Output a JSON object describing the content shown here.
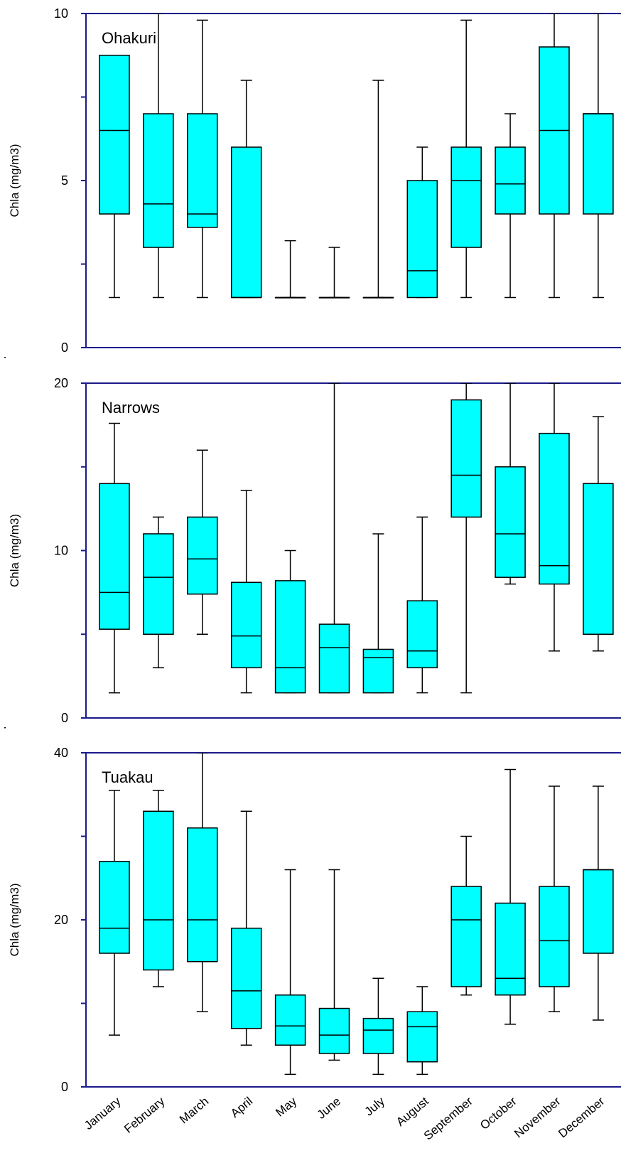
{
  "colors": {
    "box_fill": "#00FFFF",
    "frame": "#1a1a8c",
    "whisker": "#000000"
  },
  "chart_data": [
    {
      "type": "box",
      "title": "Ohakuri",
      "ylabel": "Chla (mg/m3)",
      "ylim": [
        0,
        10
      ],
      "yticks": [
        0,
        5,
        10
      ],
      "categories": [
        "January",
        "February",
        "March",
        "April",
        "May",
        "June",
        "July",
        "August",
        "September",
        "October",
        "November",
        "December"
      ],
      "boxes": [
        {
          "min": 1.5,
          "q1": 4.0,
          "median": 6.5,
          "q3": 8.75,
          "max": 8.75
        },
        {
          "min": 1.5,
          "q1": 3.0,
          "median": 4.3,
          "q3": 7.0,
          "max": 10.0
        },
        {
          "min": 1.5,
          "q1": 3.6,
          "median": 4.0,
          "q3": 7.0,
          "max": 9.8
        },
        {
          "min": 1.5,
          "q1": 1.5,
          "median": 1.5,
          "q3": 6.0,
          "max": 8.0
        },
        {
          "min": 1.5,
          "q1": 1.5,
          "median": 1.5,
          "q3": 1.5,
          "max": 3.2
        },
        {
          "min": 1.5,
          "q1": 1.5,
          "median": 1.5,
          "q3": 1.5,
          "max": 3.0
        },
        {
          "min": 1.5,
          "q1": 1.5,
          "median": 1.5,
          "q3": 1.5,
          "max": 8.0
        },
        {
          "min": 1.5,
          "q1": 1.5,
          "median": 2.3,
          "q3": 5.0,
          "max": 6.0
        },
        {
          "min": 1.5,
          "q1": 3.0,
          "median": 5.0,
          "q3": 6.0,
          "max": 9.8
        },
        {
          "min": 1.5,
          "q1": 4.0,
          "median": 4.9,
          "q3": 6.0,
          "max": 7.0
        },
        {
          "min": 1.5,
          "q1": 4.0,
          "median": 6.5,
          "q3": 9.0,
          "max": 10.0
        },
        {
          "min": 1.5,
          "q1": 4.0,
          "median": 7.0,
          "q3": 7.0,
          "max": 10.0
        }
      ]
    },
    {
      "type": "box",
      "title": "Narrows",
      "ylabel": "Chla (mg/m3)",
      "ylim": [
        0,
        20
      ],
      "yticks": [
        0,
        10,
        20
      ],
      "categories": [
        "January",
        "February",
        "March",
        "April",
        "May",
        "June",
        "July",
        "August",
        "September",
        "October",
        "November",
        "December"
      ],
      "boxes": [
        {
          "min": 1.5,
          "q1": 5.3,
          "median": 7.5,
          "q3": 14.0,
          "max": 17.6
        },
        {
          "min": 3.0,
          "q1": 5.0,
          "median": 8.4,
          "q3": 11.0,
          "max": 12.0
        },
        {
          "min": 5.0,
          "q1": 7.4,
          "median": 9.5,
          "q3": 12.0,
          "max": 16.0
        },
        {
          "min": 1.5,
          "q1": 3.0,
          "median": 4.9,
          "q3": 8.1,
          "max": 13.6
        },
        {
          "min": 1.5,
          "q1": 1.5,
          "median": 3.0,
          "q3": 8.2,
          "max": 10.0
        },
        {
          "min": 1.5,
          "q1": 1.5,
          "median": 4.2,
          "q3": 5.6,
          "max": 20.0
        },
        {
          "min": 1.5,
          "q1": 1.5,
          "median": 3.6,
          "q3": 4.1,
          "max": 11.0
        },
        {
          "min": 1.5,
          "q1": 3.0,
          "median": 4.0,
          "q3": 7.0,
          "max": 12.0
        },
        {
          "min": 1.5,
          "q1": 12.0,
          "median": 14.5,
          "q3": 19.0,
          "max": 20.0
        },
        {
          "min": 8.0,
          "q1": 8.4,
          "median": 11.0,
          "q3": 15.0,
          "max": 20.0
        },
        {
          "min": 4.0,
          "q1": 8.0,
          "median": 9.1,
          "q3": 17.0,
          "max": 20.0
        },
        {
          "min": 4.0,
          "q1": 5.0,
          "median": 14.0,
          "q3": 14.0,
          "max": 18.0
        }
      ]
    },
    {
      "type": "box",
      "title": "Tuakau",
      "ylabel": "Chla (mg/m3)",
      "ylim": [
        0,
        40
      ],
      "yticks": [
        0,
        20,
        40
      ],
      "categories": [
        "January",
        "February",
        "March",
        "April",
        "May",
        "June",
        "July",
        "August",
        "September",
        "October",
        "November",
        "December"
      ],
      "boxes": [
        {
          "min": 6.2,
          "q1": 16.0,
          "median": 19.0,
          "q3": 27.0,
          "max": 35.5
        },
        {
          "min": 12.0,
          "q1": 14.0,
          "median": 20.0,
          "q3": 33.0,
          "max": 35.5
        },
        {
          "min": 9.0,
          "q1": 15.0,
          "median": 20.0,
          "q3": 31.0,
          "max": 40.0
        },
        {
          "min": 5.0,
          "q1": 7.0,
          "median": 11.5,
          "q3": 19.0,
          "max": 33.0
        },
        {
          "min": 1.5,
          "q1": 5.0,
          "median": 7.3,
          "q3": 11.0,
          "max": 26.0
        },
        {
          "min": 3.2,
          "q1": 4.0,
          "median": 6.2,
          "q3": 9.4,
          "max": 26.0
        },
        {
          "min": 1.5,
          "q1": 4.0,
          "median": 6.8,
          "q3": 8.2,
          "max": 13.0
        },
        {
          "min": 1.5,
          "q1": 3.0,
          "median": 7.2,
          "q3": 9.0,
          "max": 12.0
        },
        {
          "min": 11.0,
          "q1": 12.0,
          "median": 20.0,
          "q3": 24.0,
          "max": 30.0
        },
        {
          "min": 7.5,
          "q1": 11.0,
          "median": 13.0,
          "q3": 22.0,
          "max": 38.0
        },
        {
          "min": 9.0,
          "q1": 12.0,
          "median": 17.5,
          "q3": 24.0,
          "max": 36.0
        },
        {
          "min": 8.0,
          "q1": 16.0,
          "median": 26.0,
          "q3": 26.0,
          "max": 36.0
        }
      ]
    }
  ]
}
